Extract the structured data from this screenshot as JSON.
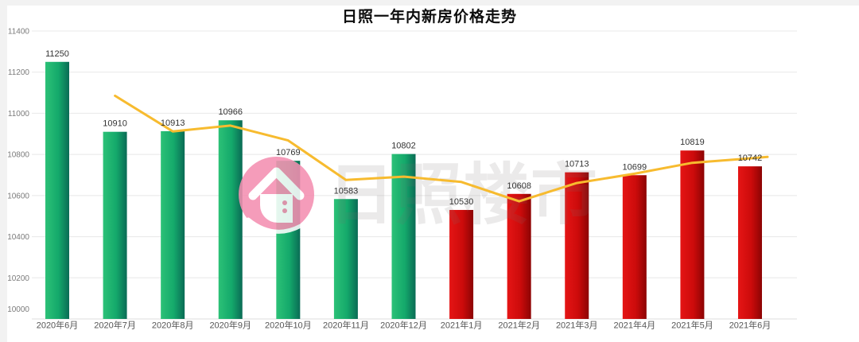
{
  "page": {
    "title": "日照一年内新房价格走势",
    "watermark": {
      "text": "日照楼市",
      "logo": "house-in-pink-circle"
    }
  },
  "colors": {
    "bar_2020_gradient_start": "#2cc177",
    "bar_2020_gradient_mid": "#14a96b",
    "bar_2020_gradient_end": "#0a6b55",
    "bar_2021_gradient_start": "#e51515",
    "bar_2021_gradient_mid": "#cc0b0b",
    "bar_2021_gradient_end": "#8c0404",
    "trend_line": "#f7bb2f",
    "grid_line": "#e8e8e8",
    "baseline": "#dcdcdc",
    "y_axis_label": "#7a7a7a",
    "x_axis_label": "#555555",
    "value_label": "#333333",
    "title_color": "#0d0d0d",
    "watermark_pink": "#f48fb1"
  },
  "chart_data": {
    "type": "bar",
    "title": "日照一年内新房价格走势",
    "categories": [
      "2020年6月",
      "2020年7月",
      "2020年8月",
      "2020年9月",
      "2020年10月",
      "2020年11月",
      "2020年12月",
      "2021年1月",
      "2021年2月",
      "2021年3月",
      "2021年4月",
      "2021年5月",
      "2021年6月"
    ],
    "series": [
      {
        "name": "price-bars",
        "type": "bar",
        "values": [
          11250,
          10910,
          10913,
          10966,
          10769,
          10583,
          10802,
          10530,
          10608,
          10713,
          10699,
          10819,
          10742
        ],
        "bar_color_groups": [
          "green",
          "green",
          "green",
          "green",
          "green",
          "green",
          "green",
          "red",
          "red",
          "red",
          "red",
          "red",
          "red"
        ]
      },
      {
        "name": "trend-line",
        "type": "line",
        "starts_at_category": "2020年7月",
        "values_estimated": true,
        "values": [
          11085,
          10912,
          10940,
          10868,
          10676,
          10692,
          10666,
          10572,
          10661,
          10706,
          10759,
          10781
        ]
      }
    ],
    "xlabel": "",
    "ylabel": "",
    "ylim": [
      10000,
      11400
    ],
    "ytick_interval": 200,
    "yticks": [
      10000,
      10200,
      10400,
      10600,
      10800,
      11000,
      11200,
      11400
    ],
    "grid": true,
    "legend_position": "none"
  }
}
